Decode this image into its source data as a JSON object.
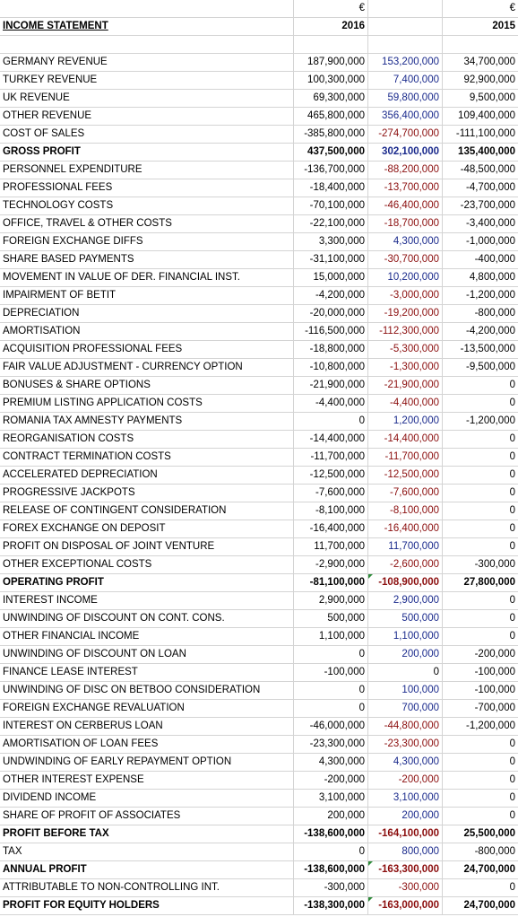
{
  "header": {
    "currency_1": "€",
    "currency_2": "",
    "currency_3": "€"
  },
  "title_row": {
    "label": "INCOME STATEMENT",
    "year_1": "2016",
    "year_2": "",
    "year_3": "2015"
  },
  "colors": {
    "positive_mid": "#1a2a8c",
    "negative_mid": "#8b0e0e",
    "comment_marker": "#2e8b3a",
    "grid": "#d4d4d4"
  },
  "rows": [
    {
      "label": "GERMANY REVENUE",
      "v2016": "187,900,000",
      "vmid": "153,200,000",
      "v2015": "34,700,000"
    },
    {
      "label": "TURKEY REVENUE",
      "v2016": "100,300,000",
      "vmid": "7,400,000",
      "v2015": "92,900,000"
    },
    {
      "label": "UK REVENUE",
      "v2016": "69,300,000",
      "vmid": "59,800,000",
      "v2015": "9,500,000"
    },
    {
      "label": "OTHER REVENUE",
      "v2016": "465,800,000",
      "vmid": "356,400,000",
      "v2015": "109,400,000"
    },
    {
      "label": "COST OF SALES",
      "v2016": "-385,800,000",
      "vmid": "-274,700,000",
      "v2015": "-111,100,000"
    },
    {
      "label": "GROSS PROFIT",
      "v2016": "437,500,000",
      "vmid": "302,100,000",
      "v2015": "135,400,000",
      "bold": true
    },
    {
      "label": "PERSONNEL EXPENDITURE",
      "v2016": "-136,700,000",
      "vmid": "-88,200,000",
      "v2015": "-48,500,000"
    },
    {
      "label": "PROFESSIONAL FEES",
      "v2016": "-18,400,000",
      "vmid": "-13,700,000",
      "v2015": "-4,700,000"
    },
    {
      "label": "TECHNOLOGY COSTS",
      "v2016": "-70,100,000",
      "vmid": "-46,400,000",
      "v2015": "-23,700,000"
    },
    {
      "label": "OFFICE, TRAVEL & OTHER COSTS",
      "v2016": "-22,100,000",
      "vmid": "-18,700,000",
      "v2015": "-3,400,000"
    },
    {
      "label": "FOREIGN EXCHANGE DIFFS",
      "v2016": "3,300,000",
      "vmid": "4,300,000",
      "v2015": "-1,000,000"
    },
    {
      "label": "SHARE BASED PAYMENTS",
      "v2016": "-31,100,000",
      "vmid": "-30,700,000",
      "v2015": "-400,000"
    },
    {
      "label": "MOVEMENT IN VALUE OF DER. FINANCIAL INST.",
      "v2016": "15,000,000",
      "vmid": "10,200,000",
      "v2015": "4,800,000"
    },
    {
      "label": "IMPAIRMENT OF BETIT",
      "v2016": "-4,200,000",
      "vmid": "-3,000,000",
      "v2015": "-1,200,000"
    },
    {
      "label": "DEPRECIATION",
      "v2016": "-20,000,000",
      "vmid": "-19,200,000",
      "v2015": "-800,000"
    },
    {
      "label": "AMORTISATION",
      "v2016": "-116,500,000",
      "vmid": "-112,300,000",
      "v2015": "-4,200,000"
    },
    {
      "label": "ACQUISITION PROFESSIONAL FEES",
      "v2016": "-18,800,000",
      "vmid": "-5,300,000",
      "v2015": "-13,500,000"
    },
    {
      "label": "FAIR VALUE ADJUSTMENT - CURRENCY OPTION",
      "v2016": "-10,800,000",
      "vmid": "-1,300,000",
      "v2015": "-9,500,000"
    },
    {
      "label": "BONUSES & SHARE OPTIONS",
      "v2016": "-21,900,000",
      "vmid": "-21,900,000",
      "v2015": "0"
    },
    {
      "label": "PREMIUM LISTING APPLICATION COSTS",
      "v2016": "-4,400,000",
      "vmid": "-4,400,000",
      "v2015": "0"
    },
    {
      "label": "ROMANIA TAX AMNESTY PAYMENTS",
      "v2016": "0",
      "vmid": "1,200,000",
      "v2015": "-1,200,000"
    },
    {
      "label": "REORGANISATION COSTS",
      "v2016": "-14,400,000",
      "vmid": "-14,400,000",
      "v2015": "0"
    },
    {
      "label": "CONTRACT TERMINATION COSTS",
      "v2016": "-11,700,000",
      "vmid": "-11,700,000",
      "v2015": "0"
    },
    {
      "label": "ACCELERATED DEPRECIATION",
      "v2016": "-12,500,000",
      "vmid": "-12,500,000",
      "v2015": "0"
    },
    {
      "label": "PROGRESSIVE JACKPOTS",
      "v2016": "-7,600,000",
      "vmid": "-7,600,000",
      "v2015": "0"
    },
    {
      "label": "RELEASE OF CONTINGENT CONSIDERATION",
      "v2016": "-8,100,000",
      "vmid": "-8,100,000",
      "v2015": "0"
    },
    {
      "label": "FOREX EXCHANGE ON DEPOSIT",
      "v2016": "-16,400,000",
      "vmid": "-16,400,000",
      "v2015": "0"
    },
    {
      "label": "PROFIT ON DISPOSAL OF JOINT VENTURE",
      "v2016": "11,700,000",
      "vmid": "11,700,000",
      "v2015": "0"
    },
    {
      "label": "OTHER EXCEPTIONAL COSTS",
      "v2016": "-2,900,000",
      "vmid": "-2,600,000",
      "v2015": "-300,000"
    },
    {
      "label": "OPERATING PROFIT",
      "v2016": "-81,100,000",
      "vmid": "-108,900,000",
      "v2015": "27,800,000",
      "bold": true,
      "marker": true
    },
    {
      "label": "INTEREST INCOME",
      "v2016": "2,900,000",
      "vmid": "2,900,000",
      "v2015": "0"
    },
    {
      "label": "UNWINDING OF DISCOUNT ON CONT. CONS.",
      "v2016": "500,000",
      "vmid": "500,000",
      "v2015": "0"
    },
    {
      "label": "OTHER FINANCIAL INCOME",
      "v2016": "1,100,000",
      "vmid": "1,100,000",
      "v2015": "0"
    },
    {
      "label": "UNWINDING OF DISCOUNT ON LOAN",
      "v2016": "0",
      "vmid": "200,000",
      "v2015": "-200,000"
    },
    {
      "label": "FINANCE LEASE INTEREST",
      "v2016": "-100,000",
      "vmid": "0",
      "v2015": "-100,000"
    },
    {
      "label": "UNWINDING OF DISC ON BETBOO CONSIDERATION",
      "v2016": "0",
      "vmid": "100,000",
      "v2015": "-100,000"
    },
    {
      "label": "FOREIGN EXCHANGE REVALUATION",
      "v2016": "0",
      "vmid": "700,000",
      "v2015": "-700,000"
    },
    {
      "label": "INTEREST ON CERBERUS LOAN",
      "v2016": "-46,000,000",
      "vmid": "-44,800,000",
      "v2015": "-1,200,000"
    },
    {
      "label": "AMORTISATION OF LOAN FEES",
      "v2016": "-23,300,000",
      "vmid": "-23,300,000",
      "v2015": "0"
    },
    {
      "label": "UNDWINDING OF EARLY REPAYMENT OPTION",
      "v2016": "4,300,000",
      "vmid": "4,300,000",
      "v2015": "0"
    },
    {
      "label": "OTHER INTEREST EXPENSE",
      "v2016": "-200,000",
      "vmid": "-200,000",
      "v2015": "0"
    },
    {
      "label": "DIVIDEND INCOME",
      "v2016": "3,100,000",
      "vmid": "3,100,000",
      "v2015": "0"
    },
    {
      "label": "SHARE OF PROFIT OF ASSOCIATES",
      "v2016": "200,000",
      "vmid": "200,000",
      "v2015": "0"
    },
    {
      "label": "PROFIT BEFORE TAX",
      "v2016": "-138,600,000",
      "vmid": "-164,100,000",
      "v2015": "25,500,000",
      "bold": true
    },
    {
      "label": "TAX",
      "v2016": "0",
      "vmid": "800,000",
      "v2015": "-800,000"
    },
    {
      "label": "ANNUAL PROFIT",
      "v2016": "-138,600,000",
      "vmid": "-163,300,000",
      "v2015": "24,700,000",
      "bold": true,
      "marker": true
    },
    {
      "label": "ATTRIBUTABLE TO NON-CONTROLLING INT.",
      "v2016": "-300,000",
      "vmid": "-300,000",
      "v2015": "0"
    },
    {
      "label": "PROFIT FOR EQUITY HOLDERS",
      "v2016": "-138,300,000",
      "vmid": "-163,000,000",
      "v2015": "24,700,000",
      "bold": true,
      "marker": true
    }
  ]
}
